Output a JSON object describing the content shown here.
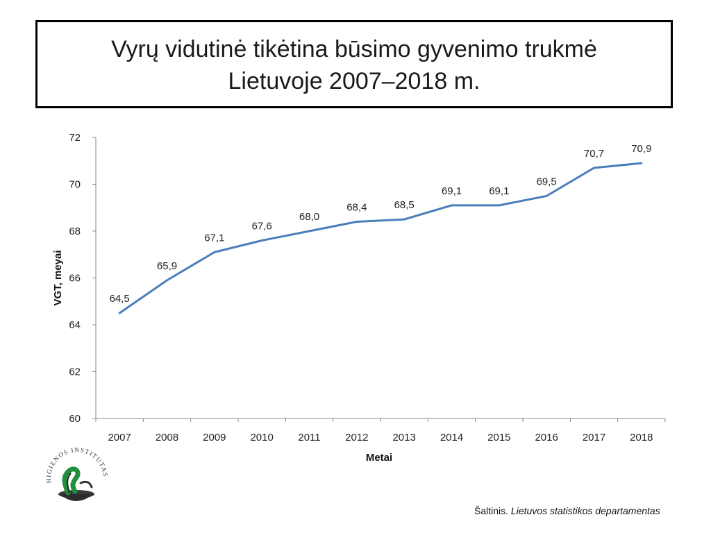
{
  "header": {
    "title_line1": "Vyrų vidutinė tikėtina būsimo gyvenimo trukmė",
    "title_line2": "Lietuvoje 2007–2018 m."
  },
  "chart_data": {
    "type": "line",
    "title": "Vyrų vidutinė tikėtina būsimo gyvenimo trukmė Lietuvoje 2007–2018 m.",
    "xlabel": "Metai",
    "ylabel": "VGT, meyai",
    "ylim": [
      60,
      72
    ],
    "yticks": [
      60,
      62,
      64,
      66,
      68,
      70,
      72
    ],
    "categories": [
      "2007",
      "2008",
      "2009",
      "2010",
      "2011",
      "2012",
      "2013",
      "2014",
      "2015",
      "2016",
      "2017",
      "2018"
    ],
    "series": [
      {
        "values": [
          64.5,
          65.9,
          67.1,
          67.6,
          68.0,
          68.4,
          68.5,
          69.1,
          69.1,
          69.5,
          70.7,
          70.9
        ],
        "data_labels": [
          "64,5",
          "65,9",
          "67,1",
          "67,6",
          "68,0",
          "68,4",
          "68,5",
          "69,1",
          "69,1",
          "69,5",
          "70,7",
          "70,9"
        ],
        "color": "#4a7ebb"
      }
    ],
    "grid": false,
    "legend": "none"
  },
  "logo": {
    "text": "HIGIENOS INSTITUTAS"
  },
  "source": {
    "prefix": "Šaltinis.",
    "text": "Lietuvos statistikos departamentas"
  }
}
